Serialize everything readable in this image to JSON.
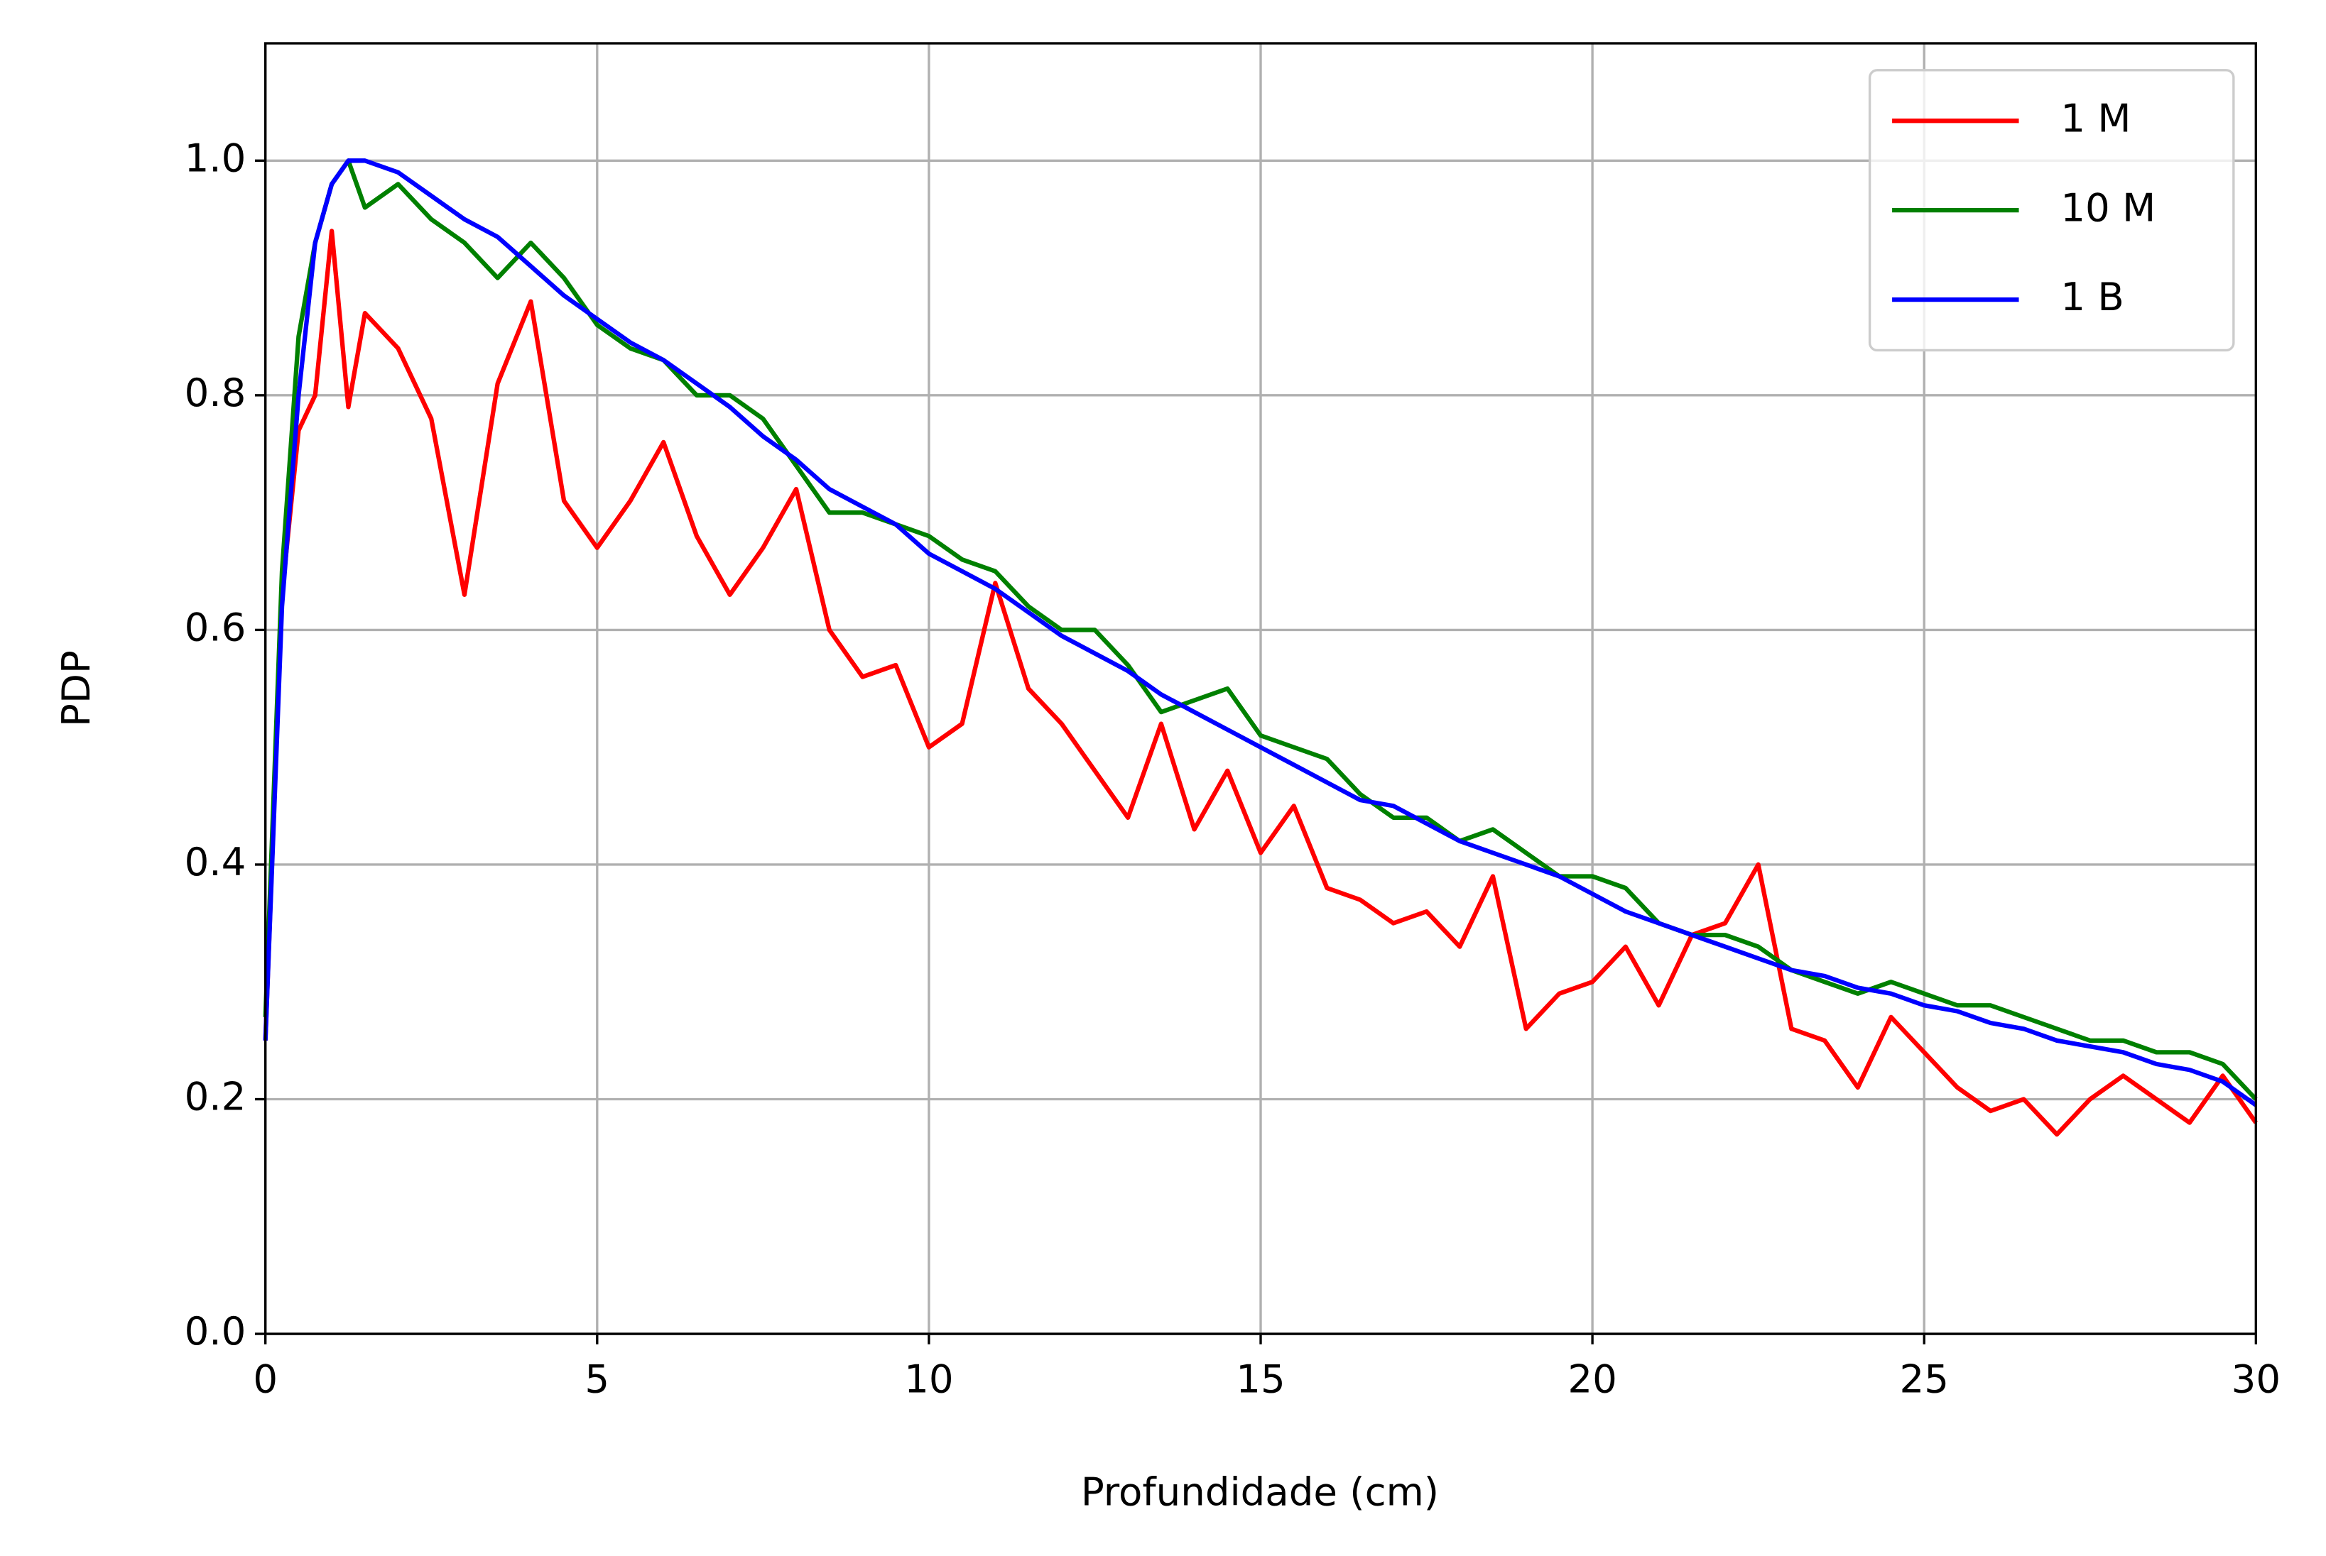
{
  "chart_data": {
    "type": "line",
    "xlabel": "Profundidade (cm)",
    "ylabel": "PDP",
    "x": [
      0,
      0.25,
      0.5,
      0.75,
      1,
      1.25,
      1.5,
      2,
      2.5,
      3,
      3.5,
      4,
      4.5,
      5,
      5.5,
      6,
      6.5,
      7,
      7.5,
      8,
      8.5,
      9,
      9.5,
      10,
      10.5,
      11,
      11.5,
      12,
      12.5,
      13,
      13.5,
      14,
      14.5,
      15,
      15.5,
      16,
      16.5,
      17,
      17.5,
      18,
      18.5,
      19,
      19.5,
      20,
      20.5,
      21,
      21.5,
      22,
      22.5,
      23,
      23.5,
      24,
      24.5,
      25,
      25.5,
      26,
      26.5,
      27,
      27.5,
      28,
      28.5,
      29,
      29.5,
      30
    ],
    "series": [
      {
        "name": "1 M",
        "color": "#ff0000",
        "values": [
          0.25,
          0.63,
          0.77,
          0.8,
          0.94,
          0.79,
          0.87,
          0.84,
          0.78,
          0.63,
          0.81,
          0.88,
          0.71,
          0.67,
          0.71,
          0.76,
          0.68,
          0.63,
          0.67,
          0.72,
          0.6,
          0.56,
          0.57,
          0.5,
          0.52,
          0.64,
          0.55,
          0.52,
          0.48,
          0.44,
          0.52,
          0.43,
          0.48,
          0.41,
          0.45,
          0.38,
          0.37,
          0.35,
          0.36,
          0.33,
          0.39,
          0.26,
          0.29,
          0.3,
          0.33,
          0.28,
          0.34,
          0.35,
          0.4,
          0.26,
          0.25,
          0.21,
          0.27,
          0.24,
          0.21,
          0.19,
          0.2,
          0.17,
          0.2,
          0.22,
          0.2,
          0.18,
          0.22,
          0.18
        ]
      },
      {
        "name": "10 M",
        "color": "#008000",
        "values": [
          0.27,
          0.65,
          0.85,
          0.93,
          0.98,
          1.0,
          0.96,
          0.98,
          0.95,
          0.93,
          0.9,
          0.93,
          0.9,
          0.86,
          0.84,
          0.83,
          0.8,
          0.8,
          0.78,
          0.74,
          0.7,
          0.7,
          0.69,
          0.68,
          0.66,
          0.65,
          0.62,
          0.6,
          0.6,
          0.57,
          0.53,
          0.54,
          0.55,
          0.51,
          0.5,
          0.49,
          0.46,
          0.44,
          0.44,
          0.42,
          0.43,
          0.41,
          0.39,
          0.39,
          0.38,
          0.35,
          0.34,
          0.34,
          0.33,
          0.31,
          0.3,
          0.29,
          0.3,
          0.29,
          0.28,
          0.28,
          0.27,
          0.26,
          0.25,
          0.25,
          0.24,
          0.24,
          0.23,
          0.2
        ]
      },
      {
        "name": "1 B",
        "color": "#0000ff",
        "values": [
          0.25,
          0.62,
          0.8,
          0.93,
          0.98,
          1.0,
          1.0,
          0.99,
          0.97,
          0.95,
          0.935,
          0.91,
          0.885,
          0.865,
          0.845,
          0.83,
          0.81,
          0.79,
          0.765,
          0.745,
          0.72,
          0.705,
          0.69,
          0.665,
          0.65,
          0.635,
          0.615,
          0.595,
          0.58,
          0.565,
          0.545,
          0.53,
          0.515,
          0.5,
          0.485,
          0.47,
          0.455,
          0.45,
          0.435,
          0.42,
          0.41,
          0.4,
          0.39,
          0.375,
          0.36,
          0.35,
          0.34,
          0.33,
          0.32,
          0.31,
          0.305,
          0.295,
          0.29,
          0.28,
          0.275,
          0.265,
          0.26,
          0.25,
          0.245,
          0.24,
          0.23,
          0.225,
          0.215,
          0.195
        ]
      }
    ],
    "xlim": [
      0,
      30
    ],
    "ylim": [
      0,
      1.1
    ],
    "xticks": [
      0,
      5,
      10,
      15,
      20,
      25,
      30
    ],
    "yticks": [
      {
        "value": 0,
        "label": "0.0"
      },
      0.2,
      0.4,
      0.6,
      0.8,
      {
        "value": 1,
        "label": "1.0"
      }
    ],
    "grid": true,
    "legend": "upper right"
  }
}
